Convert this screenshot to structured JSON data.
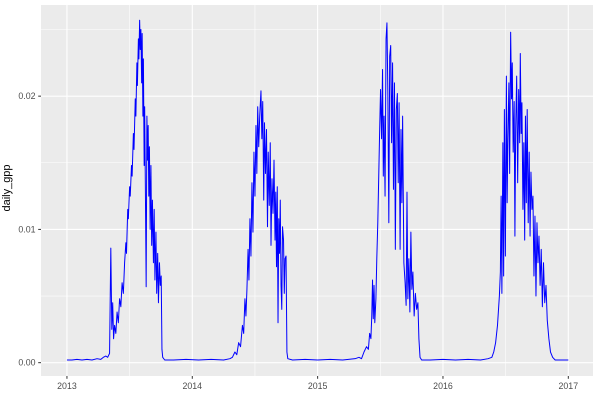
{
  "chart_data": {
    "type": "line",
    "title": "",
    "xlabel": "",
    "ylabel": "daily_gpp",
    "legend": false,
    "grid": true,
    "panel_bg": "#EBEBEB",
    "grid_color": "#FFFFFF",
    "line_color": "#0000FF",
    "tick_color": "#333333",
    "tick_label_color": "#4D4D4D",
    "xlim": [
      2012.793,
      2017.197
    ],
    "ylim": [
      -0.001,
      0.02684
    ],
    "x_ticks": [
      {
        "value": 2013,
        "label": "2013"
      },
      {
        "value": 2014,
        "label": "2014"
      },
      {
        "value": 2015,
        "label": "2015"
      },
      {
        "value": 2016,
        "label": "2016"
      },
      {
        "value": 2017,
        "label": "2017"
      }
    ],
    "y_ticks": [
      {
        "value": 0.0,
        "label": "0.00"
      },
      {
        "value": 0.01,
        "label": "0.01"
      },
      {
        "value": 0.02,
        "label": "0.02"
      }
    ],
    "x_minor": [
      2013.5,
      2014.5,
      2015.5,
      2016.5
    ],
    "y_minor": [
      0.005,
      0.015,
      0.025
    ],
    "series": [
      {
        "name": "daily_gpp",
        "color": "#0000FF",
        "points": [
          [
            2013.0,
            0.0002
          ],
          [
            2013.04,
            0.0002
          ],
          [
            2013.08,
            0.00025
          ],
          [
            2013.12,
            0.0002
          ],
          [
            2013.16,
            0.00025
          ],
          [
            2013.2,
            0.0002
          ],
          [
            2013.24,
            0.0003
          ],
          [
            2013.27,
            0.00025
          ],
          [
            2013.29,
            0.0004
          ],
          [
            2013.31,
            0.0005
          ],
          [
            2013.325,
            0.0004
          ],
          [
            2013.34,
            0.0007
          ],
          [
            2013.35,
            0.0086
          ],
          [
            2013.358,
            0.0025
          ],
          [
            2013.365,
            0.0045
          ],
          [
            2013.372,
            0.0018
          ],
          [
            2013.38,
            0.0028
          ],
          [
            2013.39,
            0.0022
          ],
          [
            2013.4,
            0.0038
          ],
          [
            2013.41,
            0.003
          ],
          [
            2013.42,
            0.0048
          ],
          [
            2013.43,
            0.0042
          ],
          [
            2013.44,
            0.006
          ],
          [
            2013.45,
            0.0052
          ],
          [
            2013.46,
            0.0075
          ],
          [
            2013.47,
            0.009
          ],
          [
            2013.475,
            0.0082
          ],
          [
            2013.485,
            0.0115
          ],
          [
            2013.49,
            0.0108
          ],
          [
            2013.5,
            0.0132
          ],
          [
            2013.505,
            0.0125
          ],
          [
            2013.515,
            0.0148
          ],
          [
            2013.52,
            0.014
          ],
          [
            2013.53,
            0.0172
          ],
          [
            2013.535,
            0.016
          ],
          [
            2013.545,
            0.0198
          ],
          [
            2013.55,
            0.0185
          ],
          [
            2013.558,
            0.0225
          ],
          [
            2013.562,
            0.0208
          ],
          [
            2013.57,
            0.0243
          ],
          [
            2013.574,
            0.0228
          ],
          [
            2013.58,
            0.0257
          ],
          [
            2013.585,
            0.0235
          ],
          [
            2013.59,
            0.025
          ],
          [
            2013.596,
            0.021
          ],
          [
            2013.6,
            0.0247
          ],
          [
            2013.606,
            0.0185
          ],
          [
            2013.61,
            0.0228
          ],
          [
            2013.616,
            0.0148
          ],
          [
            2013.62,
            0.0192
          ],
          [
            2013.626,
            0.0128
          ],
          [
            2013.632,
            0.0057
          ],
          [
            2013.638,
            0.0185
          ],
          [
            2013.643,
            0.0152
          ],
          [
            2013.648,
            0.0178
          ],
          [
            2013.653,
            0.0125
          ],
          [
            2013.658,
            0.0162
          ],
          [
            2013.664,
            0.01
          ],
          [
            2013.67,
            0.0148
          ],
          [
            2013.676,
            0.0088
          ],
          [
            2013.682,
            0.0122
          ],
          [
            2013.69,
            0.0075
          ],
          [
            2013.696,
            0.0115
          ],
          [
            2013.702,
            0.0062
          ],
          [
            2013.71,
            0.0098
          ],
          [
            2013.716,
            0.0052
          ],
          [
            2013.724,
            0.0082
          ],
          [
            2013.73,
            0.0045
          ],
          [
            2013.738,
            0.0075
          ],
          [
            2013.745,
            0.0058
          ],
          [
            2013.752,
            0.0065
          ],
          [
            2013.758,
            0.001
          ],
          [
            2013.764,
            0.0004
          ],
          [
            2013.78,
            0.0002
          ],
          [
            2013.85,
            0.0002
          ],
          [
            2013.95,
            0.00025
          ],
          [
            2014.05,
            0.0002
          ],
          [
            2014.15,
            0.00025
          ],
          [
            2014.25,
            0.0002
          ],
          [
            2014.3,
            0.0003
          ],
          [
            2014.32,
            0.0004
          ],
          [
            2014.34,
            0.0008
          ],
          [
            2014.355,
            0.0006
          ],
          [
            2014.37,
            0.0015
          ],
          [
            2014.385,
            0.0012
          ],
          [
            2014.4,
            0.0028
          ],
          [
            2014.41,
            0.0022
          ],
          [
            2014.42,
            0.0048
          ],
          [
            2014.428,
            0.0035
          ],
          [
            2014.436,
            0.0055
          ],
          [
            2014.445,
            0.0085
          ],
          [
            2014.452,
            0.0062
          ],
          [
            2014.46,
            0.0108
          ],
          [
            2014.468,
            0.008
          ],
          [
            2014.476,
            0.0135
          ],
          [
            2014.484,
            0.0098
          ],
          [
            2014.492,
            0.0158
          ],
          [
            2014.5,
            0.0125
          ],
          [
            2014.508,
            0.0178
          ],
          [
            2014.515,
            0.0142
          ],
          [
            2014.522,
            0.0192
          ],
          [
            2014.53,
            0.0162
          ],
          [
            2014.538,
            0.0185
          ],
          [
            2014.548,
            0.0204
          ],
          [
            2014.555,
            0.0168
          ],
          [
            2014.562,
            0.0196
          ],
          [
            2014.57,
            0.0122
          ],
          [
            2014.576,
            0.018
          ],
          [
            2014.584,
            0.0142
          ],
          [
            2014.592,
            0.0175
          ],
          [
            2014.6,
            0.0102
          ],
          [
            2014.606,
            0.0158
          ],
          [
            2014.614,
            0.0118
          ],
          [
            2014.622,
            0.0165
          ],
          [
            2014.628,
            0.0088
          ],
          [
            2014.636,
            0.0138
          ],
          [
            2014.644,
            0.0112
          ],
          [
            2014.652,
            0.0152
          ],
          [
            2014.66,
            0.0092
          ],
          [
            2014.666,
            0.0128
          ],
          [
            2014.672,
            0.0072
          ],
          [
            2014.678,
            0.0132
          ],
          [
            2014.684,
            0.003
          ],
          [
            2014.69,
            0.0108
          ],
          [
            2014.696,
            0.0082
          ],
          [
            2014.702,
            0.0122
          ],
          [
            2014.708,
            0.0058
          ],
          [
            2014.714,
            0.004
          ],
          [
            2014.72,
            0.0102
          ],
          [
            2014.728,
            0.0092
          ],
          [
            2014.734,
            0.0052
          ],
          [
            2014.74,
            0.0078
          ],
          [
            2014.748,
            0.008
          ],
          [
            2014.755,
            0.0008
          ],
          [
            2014.762,
            0.0003
          ],
          [
            2014.8,
            0.0002
          ],
          [
            2014.9,
            0.00025
          ],
          [
            2015.0,
            0.0002
          ],
          [
            2015.1,
            0.00025
          ],
          [
            2015.2,
            0.0002
          ],
          [
            2015.3,
            0.0003
          ],
          [
            2015.33,
            0.0004
          ],
          [
            2015.35,
            0.0003
          ],
          [
            2015.37,
            0.0008
          ],
          [
            2015.39,
            0.0012
          ],
          [
            2015.405,
            0.001
          ],
          [
            2015.415,
            0.0022
          ],
          [
            2015.425,
            0.0018
          ],
          [
            2015.432,
            0.0035
          ],
          [
            2015.438,
            0.0062
          ],
          [
            2015.444,
            0.0033
          ],
          [
            2015.45,
            0.0058
          ],
          [
            2015.456,
            0.003
          ],
          [
            2015.465,
            0.0048
          ],
          [
            2015.472,
            0.0078
          ],
          [
            2015.48,
            0.0105
          ],
          [
            2015.488,
            0.0142
          ],
          [
            2015.495,
            0.0175
          ],
          [
            2015.502,
            0.0205
          ],
          [
            2015.51,
            0.0168
          ],
          [
            2015.518,
            0.022
          ],
          [
            2015.524,
            0.014
          ],
          [
            2015.53,
            0.0185
          ],
          [
            2015.538,
            0.0125
          ],
          [
            2015.546,
            0.0243
          ],
          [
            2015.553,
            0.0255
          ],
          [
            2015.56,
            0.0205
          ],
          [
            2015.568,
            0.0105
          ],
          [
            2015.575,
            0.023
          ],
          [
            2015.583,
            0.0238
          ],
          [
            2015.59,
            0.0165
          ],
          [
            2015.598,
            0.0225
          ],
          [
            2015.605,
            0.013
          ],
          [
            2015.613,
            0.021
          ],
          [
            2015.62,
            0.0085
          ],
          [
            2015.628,
            0.019
          ],
          [
            2015.636,
            0.0202
          ],
          [
            2015.643,
            0.0135
          ],
          [
            2015.65,
            0.0195
          ],
          [
            2015.658,
            0.0085
          ],
          [
            2015.665,
            0.0175
          ],
          [
            2015.672,
            0.012
          ],
          [
            2015.678,
            0.0185
          ],
          [
            2015.688,
            0.0075
          ],
          [
            2015.698,
            0.006
          ],
          [
            2015.706,
            0.0043
          ],
          [
            2015.713,
            0.0128
          ],
          [
            2015.72,
            0.0048
          ],
          [
            2015.728,
            0.0078
          ],
          [
            2015.736,
            0.0038
          ],
          [
            2015.744,
            0.0098
          ],
          [
            2015.752,
            0.0055
          ],
          [
            2015.76,
            0.0068
          ],
          [
            2015.77,
            0.0035
          ],
          [
            2015.78,
            0.0052
          ],
          [
            2015.79,
            0.004
          ],
          [
            2015.8,
            0.0045
          ],
          [
            2015.808,
            0.0018
          ],
          [
            2015.817,
            0.0004
          ],
          [
            2015.83,
            0.0002
          ],
          [
            2015.9,
            0.0002
          ],
          [
            2016.0,
            0.00025
          ],
          [
            2016.1,
            0.0002
          ],
          [
            2016.2,
            0.00025
          ],
          [
            2016.3,
            0.0002
          ],
          [
            2016.36,
            0.0003
          ],
          [
            2016.39,
            0.0004
          ],
          [
            2016.405,
            0.0008
          ],
          [
            2016.42,
            0.0015
          ],
          [
            2016.435,
            0.0028
          ],
          [
            2016.45,
            0.005
          ],
          [
            2016.458,
            0.0068
          ],
          [
            2016.464,
            0.0125
          ],
          [
            2016.47,
            0.0052
          ],
          [
            2016.478,
            0.0165
          ],
          [
            2016.484,
            0.0065
          ],
          [
            2016.49,
            0.019
          ],
          [
            2016.498,
            0.008
          ],
          [
            2016.506,
            0.0215
          ],
          [
            2016.512,
            0.012
          ],
          [
            2016.518,
            0.0168
          ],
          [
            2016.526,
            0.021
          ],
          [
            2016.532,
            0.0142
          ],
          [
            2016.54,
            0.0248
          ],
          [
            2016.547,
            0.0198
          ],
          [
            2016.553,
            0.0225
          ],
          [
            2016.56,
            0.0158
          ],
          [
            2016.568,
            0.0196
          ],
          [
            2016.574,
            0.0095
          ],
          [
            2016.58,
            0.0175
          ],
          [
            2016.588,
            0.0215
          ],
          [
            2016.596,
            0.0135
          ],
          [
            2016.604,
            0.0205
          ],
          [
            2016.612,
            0.0165
          ],
          [
            2016.617,
            0.0232
          ],
          [
            2016.624,
            0.0172
          ],
          [
            2016.63,
            0.0195
          ],
          [
            2016.638,
            0.0115
          ],
          [
            2016.645,
            0.0165
          ],
          [
            2016.652,
            0.0092
          ],
          [
            2016.658,
            0.0185
          ],
          [
            2016.665,
            0.012
          ],
          [
            2016.672,
            0.019
          ],
          [
            2016.68,
            0.0105
          ],
          [
            2016.688,
            0.0158
          ],
          [
            2016.695,
            0.0095
          ],
          [
            2016.702,
            0.0143
          ],
          [
            2016.71,
            0.0115
          ],
          [
            2016.718,
            0.0125
          ],
          [
            2016.726,
            0.0065
          ],
          [
            2016.734,
            0.011
          ],
          [
            2016.742,
            0.005
          ],
          [
            2016.75,
            0.0105
          ],
          [
            2016.758,
            0.0075
          ],
          [
            2016.766,
            0.0095
          ],
          [
            2016.775,
            0.0058
          ],
          [
            2016.784,
            0.0085
          ],
          [
            2016.793,
            0.0042
          ],
          [
            2016.802,
            0.0075
          ],
          [
            2016.812,
            0.0045
          ],
          [
            2016.822,
            0.0058
          ],
          [
            2016.832,
            0.0032
          ],
          [
            2016.845,
            0.0018
          ],
          [
            2016.858,
            0.0008
          ],
          [
            2016.875,
            0.0004
          ],
          [
            2016.895,
            0.0002
          ],
          [
            2016.95,
            0.0002
          ],
          [
            2017.0,
            0.0002
          ]
        ]
      }
    ]
  },
  "layout_note": ""
}
